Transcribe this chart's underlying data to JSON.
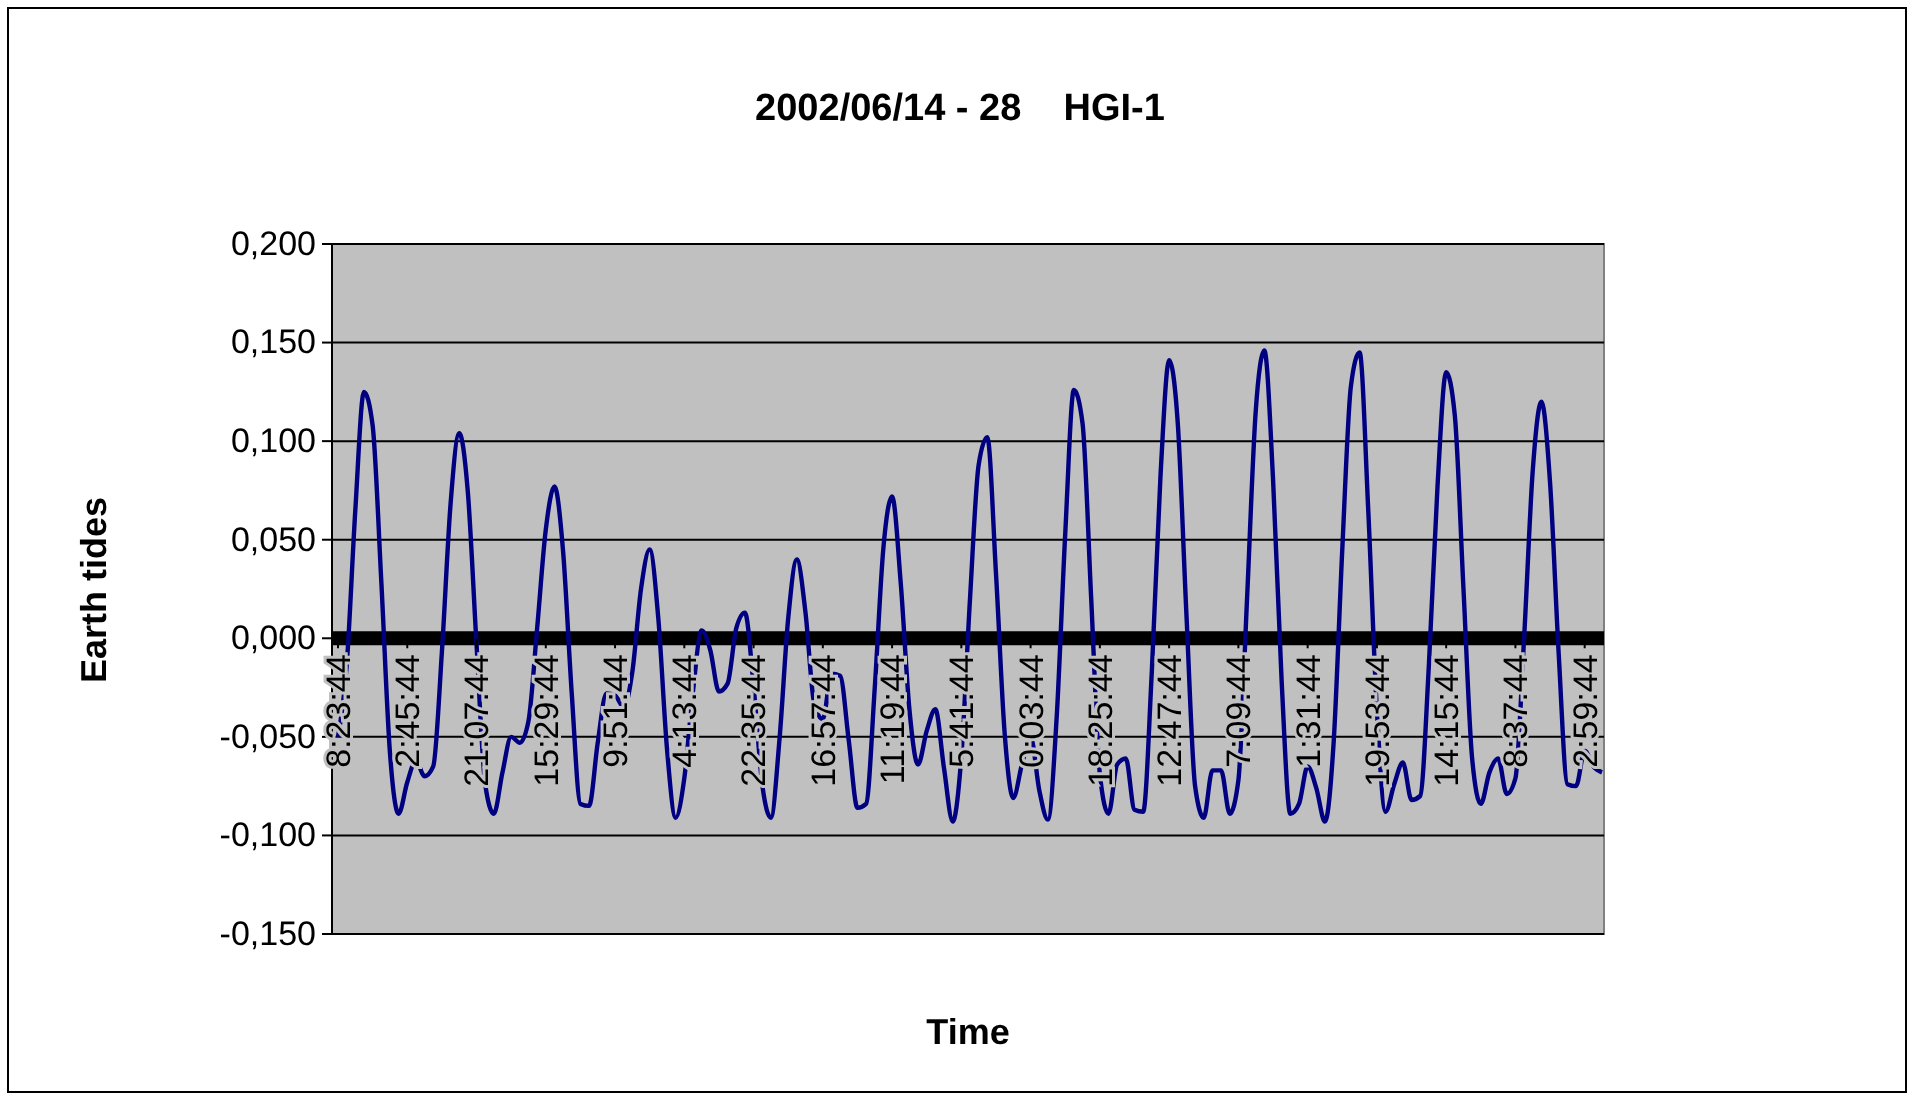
{
  "chart_data": {
    "type": "line",
    "title": "2002/06/14 - 28    HGI-1",
    "xlabel": "Time",
    "ylabel": "Earth tides",
    "categories": [
      "8:23:44",
      null,
      null,
      null,
      null,
      null,
      null,
      null,
      "2:45:44",
      null,
      null,
      null,
      null,
      null,
      null,
      null,
      "21:07:44",
      null,
      null,
      null,
      null,
      null,
      null,
      null,
      "15:29:44",
      null,
      null,
      null,
      null,
      null,
      null,
      null,
      "9:51:44",
      null,
      null,
      null,
      null,
      null,
      null,
      null,
      "4:13:44",
      null,
      null,
      null,
      null,
      null,
      null,
      null,
      "22:35:44",
      null,
      null,
      null,
      null,
      null,
      null,
      null,
      "16:57:44",
      null,
      null,
      null,
      null,
      null,
      null,
      null,
      "11:19:44",
      null,
      null,
      null,
      null,
      null,
      null,
      null,
      "5:41:44",
      null,
      null,
      null,
      null,
      null,
      null,
      null,
      "0:03:44",
      null,
      null,
      null,
      null,
      null,
      null,
      null,
      "18:25:44",
      null,
      null,
      null,
      null,
      null,
      null,
      null,
      "12:47:44",
      null,
      null,
      null,
      null,
      null,
      null,
      null,
      "7:09:44",
      null,
      null,
      null,
      null,
      null,
      null,
      null,
      "1:31:44",
      null,
      null,
      null,
      null,
      null,
      null,
      null,
      "19:53:44",
      null,
      null,
      null,
      null,
      null,
      null,
      null,
      "14:15:44",
      null,
      null,
      null,
      null,
      null,
      null,
      null,
      "8:37:44",
      null,
      null,
      null,
      null,
      null,
      null,
      null,
      "2:59:44",
      null,
      null
    ],
    "series": [
      {
        "color": "#000080",
        "values": [
          -0.05,
          -0.014,
          0.065,
          0.125,
          0.108,
          0.029,
          -0.058,
          -0.089,
          -0.073,
          -0.062,
          -0.07,
          -0.065,
          -0.007,
          0.068,
          0.104,
          0.074,
          -0.003,
          -0.074,
          -0.089,
          -0.068,
          -0.05,
          -0.053,
          -0.042,
          0.005,
          0.055,
          0.077,
          0.044,
          -0.028,
          -0.084,
          -0.085,
          -0.053,
          -0.028,
          -0.029,
          -0.035,
          -0.017,
          0.025,
          0.045,
          0.01,
          -0.056,
          -0.091,
          -0.071,
          -0.027,
          0.004,
          -0.006,
          -0.027,
          -0.023,
          0.005,
          0.013,
          -0.024,
          -0.074,
          -0.091,
          -0.051,
          0.01,
          0.04,
          0.013,
          -0.033,
          -0.041,
          -0.018,
          -0.019,
          -0.052,
          -0.086,
          -0.084,
          -0.025,
          0.046,
          0.072,
          0.028,
          -0.036,
          -0.064,
          -0.047,
          -0.036,
          -0.066,
          -0.093,
          -0.06,
          0.02,
          0.088,
          0.102,
          0.033,
          -0.048,
          -0.081,
          -0.064,
          -0.05,
          -0.077,
          -0.092,
          -0.041,
          0.053,
          0.126,
          0.109,
          0.02,
          -0.069,
          -0.089,
          -0.064,
          -0.061,
          -0.087,
          -0.088,
          -0.017,
          0.082,
          0.141,
          0.109,
          0.012,
          -0.075,
          -0.091,
          -0.067,
          -0.067,
          -0.089,
          -0.072,
          0.02,
          0.115,
          0.146,
          0.081,
          -0.022,
          -0.089,
          -0.084,
          -0.065,
          -0.076,
          -0.093,
          -0.053,
          0.045,
          0.128,
          0.145,
          0.065,
          -0.037,
          -0.088,
          -0.074,
          -0.063,
          -0.082,
          -0.08,
          -0.014,
          0.077,
          0.135,
          0.113,
          0.025,
          -0.061,
          -0.084,
          -0.068,
          -0.061,
          -0.079,
          -0.071,
          0,
          0.085,
          0.12,
          0.079,
          -0.008,
          -0.074,
          -0.075,
          -0.057,
          -0.065,
          -0.068
        ]
      }
    ],
    "ylim": [
      -0.15,
      0.2
    ],
    "yticks": [
      {
        "value": -0.15,
        "label": "-0,150"
      },
      {
        "value": -0.1,
        "label": "-0,100"
      },
      {
        "value": -0.05,
        "label": "-0,050"
      },
      {
        "value": 0,
        "label": "0,000"
      },
      {
        "value": 0.05,
        "label": "0,050"
      },
      {
        "value": 0.1,
        "label": "0,100"
      },
      {
        "value": 0.15,
        "label": "0,150"
      },
      {
        "value": 0.2,
        "label": "0,200"
      }
    ],
    "grid": "y",
    "marker": "none",
    "line_style": "solid"
  }
}
